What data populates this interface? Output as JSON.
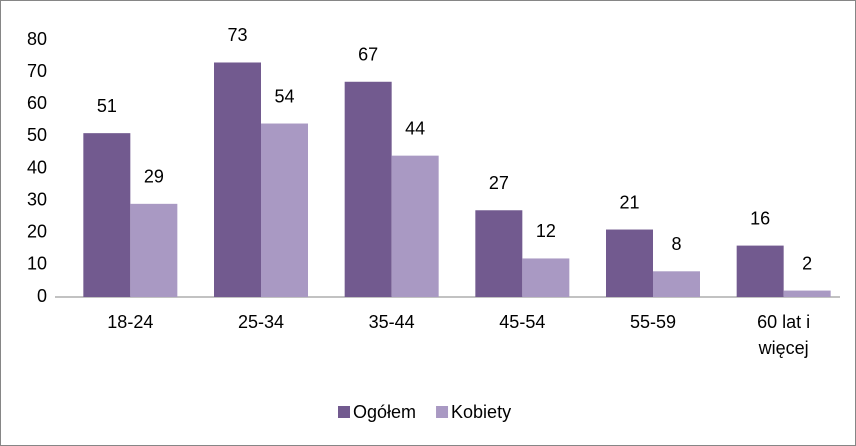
{
  "chart_data": {
    "type": "bar",
    "categories": [
      "18-24",
      "25-34",
      "35-44",
      "45-54",
      "55-59",
      "60 lat i więcej"
    ],
    "series": [
      {
        "name": "Ogółem",
        "color": "#725a8f",
        "values": [
          51,
          73,
          67,
          27,
          21,
          16
        ]
      },
      {
        "name": "Kobiety",
        "color": "#a999c3",
        "values": [
          29,
          54,
          44,
          12,
          8,
          2
        ]
      }
    ],
    "ylim": [
      0,
      80
    ],
    "yticks": [
      0,
      10,
      20,
      30,
      40,
      50,
      60,
      70,
      80
    ],
    "grid": false,
    "legend": "bottom"
  }
}
